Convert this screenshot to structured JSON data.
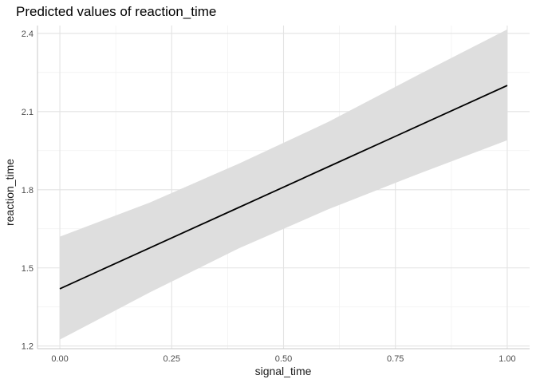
{
  "chart_data": {
    "type": "line",
    "title": "Predicted values of reaction_time",
    "xlabel": "signal_time",
    "ylabel": "reaction_time",
    "xlim": [
      -0.05,
      1.05
    ],
    "ylim": [
      1.19,
      2.43
    ],
    "x_ticks": [
      0.0,
      0.25,
      0.5,
      0.75,
      1.0
    ],
    "x_tick_labels": [
      "0.00",
      "0.25",
      "0.50",
      "0.75",
      "1.00"
    ],
    "y_ticks": [
      1.2,
      1.5,
      1.8,
      2.1,
      2.4
    ],
    "y_tick_labels": [
      "1.2",
      "1.5",
      "1.8",
      "2.1",
      "2.4"
    ],
    "grid": true,
    "series": [
      {
        "x": [
          0.0,
          0.2,
          0.4,
          0.6,
          0.8,
          1.0
        ],
        "values": [
          1.42,
          1.576,
          1.732,
          1.888,
          2.044,
          2.2
        ],
        "ci_lower": [
          1.225,
          1.405,
          1.575,
          1.725,
          1.86,
          1.99
        ],
        "ci_upper": [
          1.62,
          1.75,
          1.9,
          2.06,
          2.24,
          2.415
        ],
        "line_color": "#000000",
        "ribbon_color": "#dedede"
      }
    ]
  }
}
